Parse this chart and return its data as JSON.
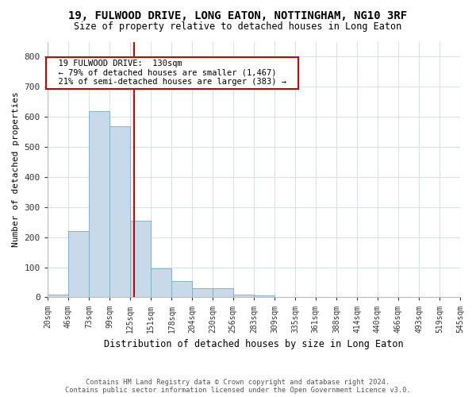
{
  "title": "19, FULWOOD DRIVE, LONG EATON, NOTTINGHAM, NG10 3RF",
  "subtitle": "Size of property relative to detached houses in Long Eaton",
  "xlabel": "Distribution of detached houses by size in Long Eaton",
  "ylabel": "Number of detached properties",
  "footnote1": "Contains HM Land Registry data © Crown copyright and database right 2024.",
  "footnote2": "Contains public sector information licensed under the Open Government Licence v3.0.",
  "property_size": 130,
  "property_label": "19 FULWOOD DRIVE:  130sqm",
  "annotation_line1": "← 79% of detached houses are smaller (1,467)",
  "annotation_line2": "21% of semi-detached houses are larger (383) →",
  "bin_edges": [
    20,
    46,
    73,
    99,
    125,
    151,
    178,
    204,
    230,
    256,
    283,
    309,
    335,
    361,
    388,
    414,
    440,
    466,
    493,
    519,
    545
  ],
  "bar_heights": [
    10,
    220,
    620,
    570,
    255,
    95,
    55,
    30,
    30,
    10,
    5,
    2,
    1,
    1,
    0,
    0,
    0,
    0,
    0,
    1
  ],
  "bar_color": "#c8daea",
  "bar_edge_color": "#7aaac8",
  "line_color": "#cc0000",
  "annotation_box_color": "#cc0000",
  "grid_color": "#d8e0ea",
  "background_color": "#ffffff",
  "ylim": [
    0,
    850
  ],
  "yticks": [
    0,
    100,
    200,
    300,
    400,
    500,
    600,
    700,
    800
  ]
}
